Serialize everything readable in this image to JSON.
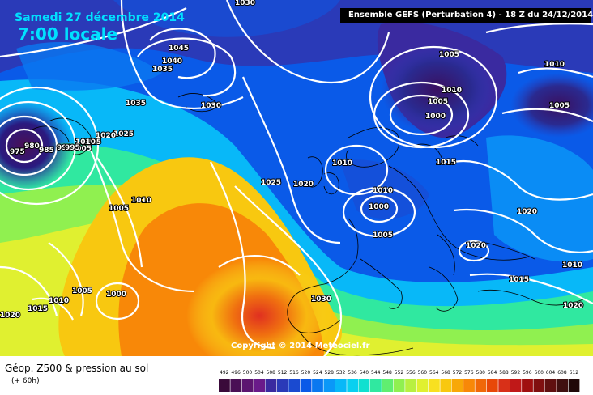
{
  "header": {
    "date": "Samedi 27 décembre 2014",
    "time": "7:00 locale",
    "run": "Ensemble GEFS  (Perturbation 4)  -  18 Z du 24/12/2014"
  },
  "map": {
    "copyright": "Copyright © 2014 Meteociel.fr",
    "pressure_labels": [
      "1030",
      "1045",
      "1040",
      "1035",
      "1035",
      "1030",
      "1025",
      "1020",
      "1015",
      "1010",
      "1005",
      "1000",
      "999",
      "995",
      "985",
      "980",
      "975",
      "1025",
      "1010",
      "1005",
      "1010",
      "1000",
      "1005",
      "1010",
      "1005",
      "1015",
      "1020",
      "1020",
      "1010",
      "1015",
      "1020",
      "1030",
      "1010",
      "1005",
      "1000",
      "1005",
      "1010",
      "1015",
      "1020"
    ],
    "pressure_label_groups": {
      "high_area": "1045",
      "low_area": "975",
      "center_low": "1000"
    }
  },
  "footer": {
    "title": "Géop. Z500 & pression au sol",
    "subtitle": "(+ 60h)"
  },
  "legend": {
    "values": [
      "492",
      "496",
      "500",
      "504",
      "508",
      "512",
      "516",
      "520",
      "524",
      "528",
      "532",
      "536",
      "540",
      "544",
      "548",
      "552",
      "556",
      "560",
      "564",
      "568",
      "572",
      "576",
      "580",
      "584",
      "588",
      "592",
      "596",
      "600",
      "604",
      "608",
      "612"
    ],
    "colors": [
      "#3a0a3a",
      "#4a0f55",
      "#5c1570",
      "#6a1a8a",
      "#3a2aa0",
      "#2a3ab8",
      "#1a4ad0",
      "#0a5ae8",
      "#0a78f0",
      "#0a98f8",
      "#08b8f8",
      "#08d0f0",
      "#10e0d0",
      "#30e8a0",
      "#60ee70",
      "#90f050",
      "#b8f040",
      "#e0f030",
      "#f8e020",
      "#f8c810",
      "#f8a808",
      "#f88808",
      "#f06808",
      "#e84808",
      "#d83018",
      "#c01818",
      "#a01010",
      "#801010",
      "#601010",
      "#401010",
      "#200808"
    ]
  },
  "colors": {
    "date_text": "#00e0ff",
    "isobar": "#ffffff",
    "coastline": "#000000"
  }
}
